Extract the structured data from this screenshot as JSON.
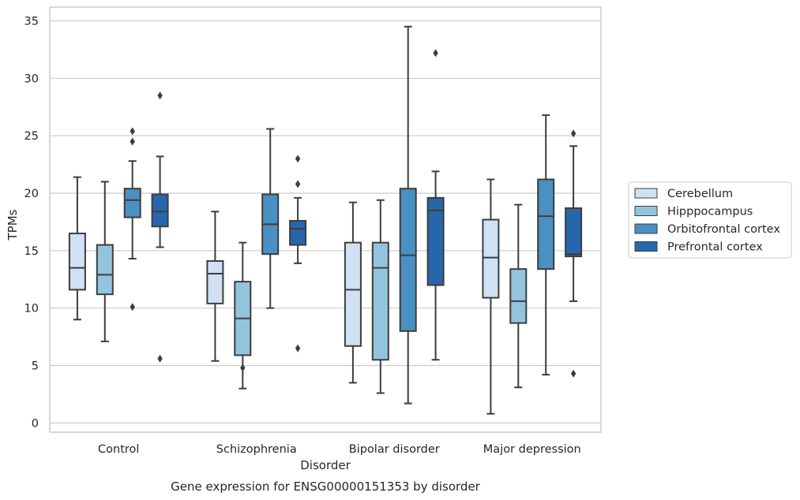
{
  "caption": "Gene expression for ENSG00000151353 by disorder",
  "chart_data": {
    "type": "box",
    "xlabel": "Disorder",
    "ylabel": "TPMs",
    "ylim": [
      -0.8,
      36.2
    ],
    "yticks": [
      0,
      5,
      10,
      15,
      20,
      25,
      30,
      35
    ],
    "grid": "horizontal",
    "legend_position": "right",
    "categories": [
      "Control",
      "Schizophrenia",
      "Bipolar disorder",
      "Major depression"
    ],
    "series": [
      {
        "name": "Cerebellum",
        "color": "#cfe1f2",
        "boxes": [
          {
            "whislo": 9.0,
            "q1": 11.6,
            "med": 13.5,
            "q3": 16.5,
            "whishi": 21.4,
            "fliers": []
          },
          {
            "whislo": 5.4,
            "q1": 10.4,
            "med": 13.0,
            "q3": 14.1,
            "whishi": 18.4,
            "fliers": []
          },
          {
            "whislo": 3.5,
            "q1": 6.7,
            "med": 11.6,
            "q3": 15.7,
            "whishi": 19.2,
            "fliers": []
          },
          {
            "whislo": 0.8,
            "q1": 10.9,
            "med": 14.4,
            "q3": 17.7,
            "whishi": 21.2,
            "fliers": []
          }
        ]
      },
      {
        "name": "Hipppocampus",
        "color": "#93c4de",
        "boxes": [
          {
            "whislo": 7.1,
            "q1": 11.2,
            "med": 12.9,
            "q3": 15.5,
            "whishi": 21.0,
            "fliers": []
          },
          {
            "whislo": 3.0,
            "q1": 5.9,
            "med": 9.1,
            "q3": 12.3,
            "whishi": 15.7,
            "fliers": [
              4.8
            ]
          },
          {
            "whislo": 2.6,
            "q1": 5.5,
            "med": 13.5,
            "q3": 15.7,
            "whishi": 19.4,
            "fliers": []
          },
          {
            "whislo": 3.1,
            "q1": 8.7,
            "med": 10.6,
            "q3": 13.4,
            "whishi": 19.0,
            "fliers": []
          }
        ]
      },
      {
        "name": "Orbitofrontal cortex",
        "color": "#4a90c2",
        "boxes": [
          {
            "whislo": 14.3,
            "q1": 17.9,
            "med": 19.4,
            "q3": 20.4,
            "whishi": 22.8,
            "fliers": [
              10.1,
              24.5,
              25.4
            ]
          },
          {
            "whislo": 10.0,
            "q1": 14.7,
            "med": 17.3,
            "q3": 19.9,
            "whishi": 25.6,
            "fliers": []
          },
          {
            "whislo": 1.7,
            "q1": 8.0,
            "med": 14.6,
            "q3": 20.4,
            "whishi": 34.5,
            "fliers": []
          },
          {
            "whislo": 4.2,
            "q1": 13.4,
            "med": 18.0,
            "q3": 21.2,
            "whishi": 26.8,
            "fliers": []
          }
        ]
      },
      {
        "name": "Prefrontal cortex",
        "color": "#2866ab",
        "boxes": [
          {
            "whislo": 15.3,
            "q1": 17.1,
            "med": 18.4,
            "q3": 19.9,
            "whishi": 23.2,
            "fliers": [
              5.6,
              28.5
            ]
          },
          {
            "whislo": 13.9,
            "q1": 15.5,
            "med": 16.9,
            "q3": 17.6,
            "whishi": 19.6,
            "fliers": [
              6.5,
              20.8,
              23.0
            ]
          },
          {
            "whislo": 5.5,
            "q1": 12.0,
            "med": 18.5,
            "q3": 19.6,
            "whishi": 21.9,
            "fliers": [
              32.2
            ]
          },
          {
            "whislo": 10.6,
            "q1": 14.5,
            "med": 14.7,
            "q3": 18.7,
            "whishi": 24.1,
            "fliers": [
              4.3,
              25.2
            ]
          }
        ]
      }
    ]
  }
}
